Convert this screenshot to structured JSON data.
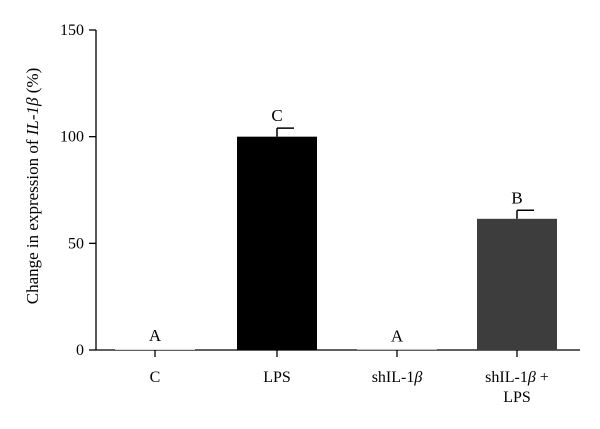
{
  "chart_data": {
    "type": "bar",
    "title": "",
    "xlabel": "",
    "ylabel": {
      "prefix": "Change in expression of ",
      "gene": "IL-1",
      "greek": "β",
      "suffix": " (%)"
    },
    "ylim": [
      0,
      150
    ],
    "yticks": [
      0,
      50,
      100,
      150
    ],
    "categories": [
      {
        "parts": [
          {
            "t": "C",
            "i": false
          }
        ]
      },
      {
        "parts": [
          {
            "t": "LPS",
            "i": false
          }
        ]
      },
      {
        "parts": [
          {
            "t": "shIL-1",
            "i": false
          },
          {
            "t": "β",
            "i": true
          }
        ]
      },
      {
        "parts": [
          {
            "t": "shIL-1",
            "i": false
          },
          {
            "t": "β",
            "i": true
          },
          {
            "t": " +",
            "i": false
          }
        ],
        "line2": "LPS"
      }
    ],
    "values": [
      0.5,
      100,
      0.3,
      61.5
    ],
    "errors": [
      0,
      4,
      0,
      4
    ],
    "significance": [
      "A",
      "C",
      "A",
      "B"
    ],
    "colors": [
      "#d9d9d9",
      "#000000",
      "#bdbdbd",
      "#3d3d3d"
    ],
    "grid": false,
    "legend": "none"
  }
}
